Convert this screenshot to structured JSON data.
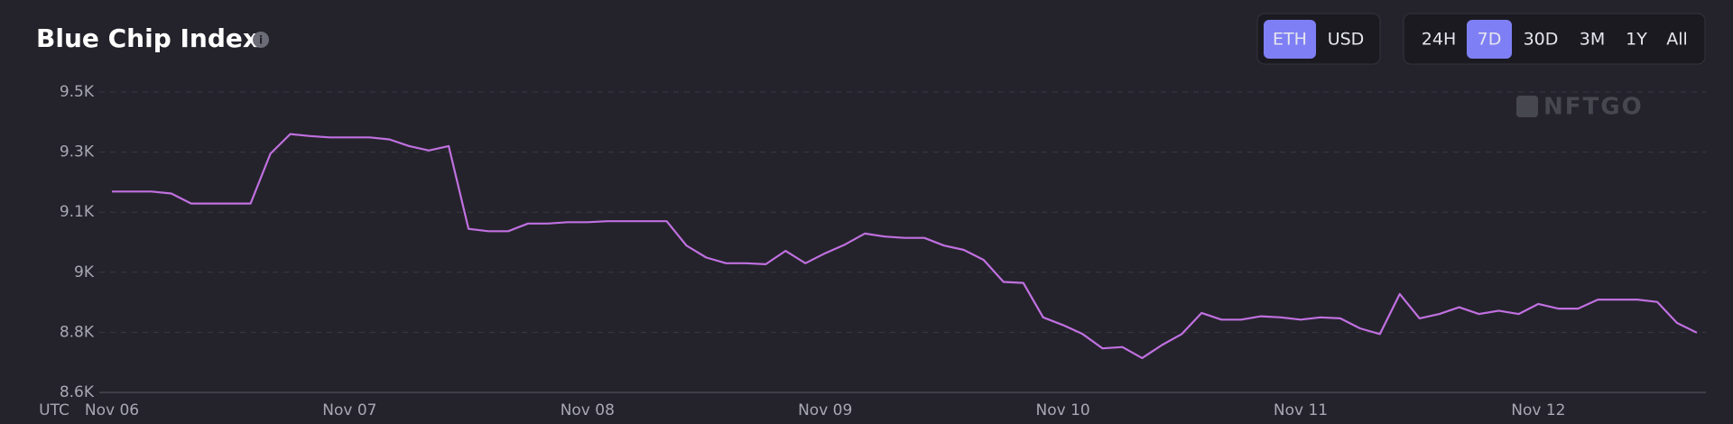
{
  "chart_data": {
    "type": "line",
    "title": "Blue Chip Index",
    "xlabel": "UTC",
    "watermark": "NFTGO",
    "categories": [
      "Nov 06",
      null,
      null,
      null,
      null,
      null,
      null,
      null,
      null,
      null,
      null,
      null,
      "Nov 07",
      null,
      null,
      null,
      null,
      null,
      null,
      null,
      null,
      null,
      null,
      null,
      "Nov 08",
      null,
      null,
      null,
      null,
      null,
      null,
      null,
      null,
      null,
      null,
      null,
      "Nov 09",
      null,
      null,
      null,
      null,
      null,
      null,
      null,
      null,
      null,
      null,
      null,
      "Nov 10",
      null,
      null,
      null,
      null,
      null,
      null,
      null,
      null,
      null,
      null,
      null,
      "Nov 11",
      null,
      null,
      null,
      null,
      null,
      null,
      null,
      null,
      null,
      null,
      null,
      "Nov 12",
      null,
      null,
      null,
      null,
      null,
      null,
      null,
      null
    ],
    "values": [
      9202,
      9202,
      9202,
      9196,
      9166,
      9166,
      9166,
      9166,
      9315,
      9374,
      9368,
      9364,
      9364,
      9364,
      9358,
      9338,
      9325,
      9338,
      9090,
      9083,
      9083,
      9106,
      9106,
      9110,
      9110,
      9113,
      9113,
      9113,
      9113,
      9040,
      9004,
      8987,
      8987,
      8984,
      9024,
      8987,
      9017,
      9043,
      9076,
      9067,
      9063,
      9063,
      9040,
      9027,
      8997,
      8931,
      8928,
      8825,
      8802,
      8775,
      8732,
      8736,
      8703,
      8742,
      8775,
      8838,
      8818,
      8818,
      8828,
      8825,
      8818,
      8825,
      8822,
      8792,
      8775,
      8895,
      8822,
      8835,
      8855,
      8835,
      8845,
      8835,
      8865,
      8851,
      8851,
      8878,
      8878,
      8878,
      8871,
      8808,
      8779
    ],
    "color": "#c070e0",
    "ylim": [
      8600,
      9500
    ],
    "yticks": [
      {
        "value": 8600,
        "label": "8.6K"
      },
      {
        "value": 8780,
        "label": "8.8K"
      },
      {
        "value": 8960,
        "label": "9K"
      },
      {
        "value": 9140,
        "label": "9.1K"
      },
      {
        "value": 9320,
        "label": "9.3K"
      },
      {
        "value": 9500,
        "label": "9.5K"
      }
    ],
    "grid": true
  },
  "toolbar": {
    "currency": [
      "ETH",
      "USD"
    ],
    "currency_selected": 0,
    "range": [
      "24H",
      "7D",
      "30D",
      "3M",
      "1Y",
      "All"
    ],
    "range_selected": 1
  }
}
